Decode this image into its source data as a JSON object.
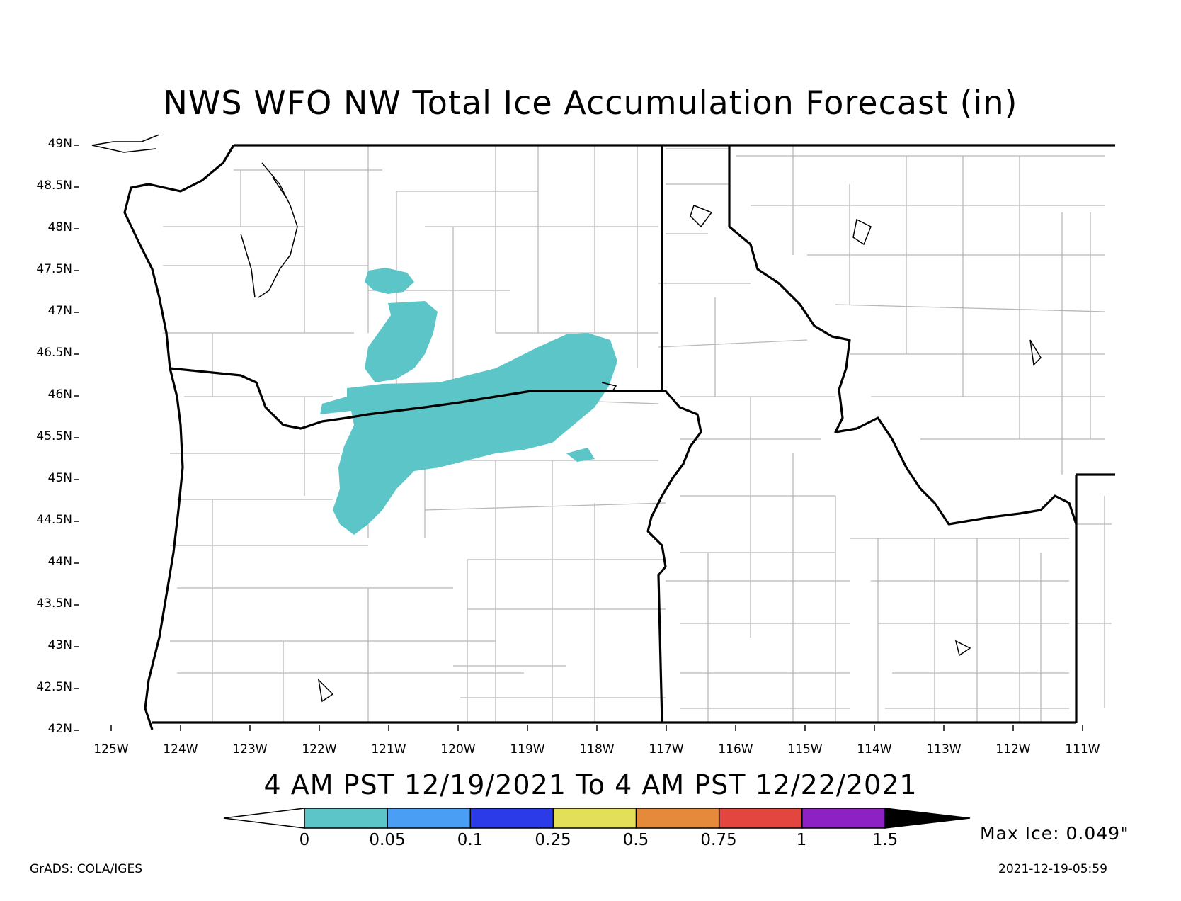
{
  "title": "NWS WFO NW Total Ice Accumulation Forecast (in)",
  "subtitle": "4 AM PST 12/19/2021 To 4 AM PST 12/22/2021",
  "max_ice": "Max Ice: 0.049\"",
  "credit": "GrADS: COLA/IGES",
  "timestamp": "2021-12-19-05:59",
  "lat_labels": [
    "49N",
    "48.5N",
    "48N",
    "47.5N",
    "47N",
    "46.5N",
    "46N",
    "45.5N",
    "45N",
    "44.5N",
    "44N",
    "43.5N",
    "43N",
    "42.5N",
    "42N"
  ],
  "lon_labels": [
    "125W",
    "124W",
    "123W",
    "122W",
    "121W",
    "120W",
    "119W",
    "118W",
    "117W",
    "116W",
    "115W",
    "114W",
    "113W",
    "112W",
    "111W"
  ],
  "colorbar": {
    "labels": [
      "0",
      "0.05",
      "0.1",
      "0.25",
      "0.5",
      "0.75",
      "1",
      "1.5"
    ],
    "colors": [
      "#5bc5c8",
      "#4a9ff5",
      "#2b3be8",
      "#e3df58",
      "#e5893a",
      "#e2463f",
      "#8e21c4"
    ],
    "low_color": "#ffffff",
    "high_color": "#000000"
  },
  "colors": {
    "ice_fill": "#5bc5c8",
    "county_lines": "#b8b8b8",
    "state_lines": "#000000"
  }
}
